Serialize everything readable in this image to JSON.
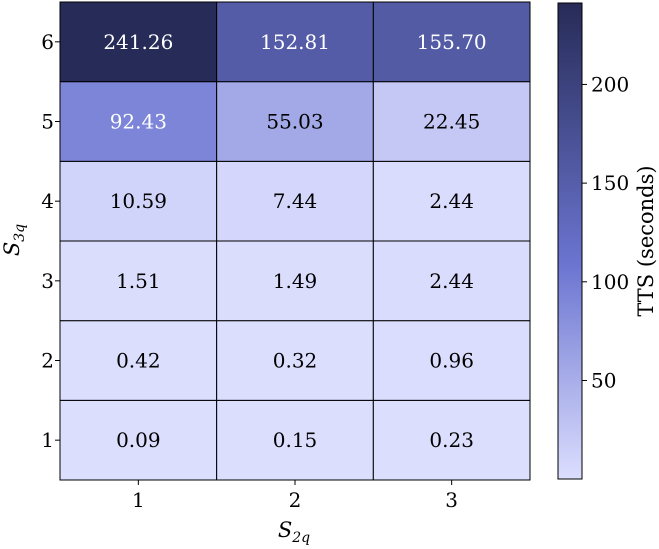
{
  "chart_data": {
    "type": "heatmap",
    "x_categories": [
      "1",
      "2",
      "3"
    ],
    "y_categories": [
      "1",
      "2",
      "3",
      "4",
      "5",
      "6"
    ],
    "values": [
      [
        "0.09",
        "0.15",
        "0.23"
      ],
      [
        "0.42",
        "0.32",
        "0.96"
      ],
      [
        "1.51",
        "1.49",
        "2.44"
      ],
      [
        "10.59",
        "7.44",
        "2.44"
      ],
      [
        "92.43",
        "55.03",
        "22.45"
      ],
      [
        "241.26",
        "152.81",
        "155.70"
      ]
    ],
    "xlabel_main": "S",
    "xlabel_sub": "2q",
    "ylabel_main": "S",
    "ylabel_sub": "3q",
    "colorbar": {
      "label": "TTS (seconds)",
      "min": 0.09,
      "max": 241.26,
      "ticks": [
        "50",
        "100",
        "150",
        "200"
      ],
      "low_color": "#dcdefe",
      "mid_color": "#6b75d0",
      "high_color": "#272b57"
    },
    "grid": true
  }
}
